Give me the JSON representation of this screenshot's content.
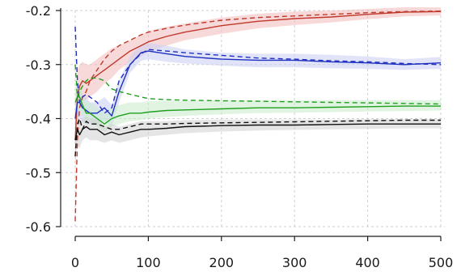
{
  "chart_data": {
    "type": "line",
    "title": "",
    "xlabel": "",
    "ylabel": "",
    "xlim": [
      0,
      500
    ],
    "ylim": [
      -0.6,
      -0.2
    ],
    "grid": true,
    "legend": "none",
    "x_ticks": [
      0,
      100,
      200,
      300,
      400,
      500
    ],
    "x_tick_labels": [
      "0",
      "100",
      "200",
      "300",
      "400",
      "500"
    ],
    "y_ticks": [
      -0.2,
      -0.3,
      -0.4,
      -0.5,
      -0.6
    ],
    "y_tick_labels": [
      "-0.2",
      "-0.3",
      "-0.4",
      "-0.5",
      "-0.6"
    ],
    "x": [
      0,
      3,
      6,
      10,
      15,
      20,
      30,
      40,
      50,
      60,
      75,
      90,
      100,
      125,
      150,
      200,
      250,
      300,
      350,
      400,
      450,
      500
    ],
    "series": [
      {
        "color": "#c0392b",
        "band_color": "#f2b9b9",
        "mean": [
          -0.44,
          -0.36,
          -0.34,
          -0.33,
          -0.335,
          -0.33,
          -0.32,
          -0.31,
          -0.3,
          -0.29,
          -0.275,
          -0.265,
          -0.258,
          -0.248,
          -0.24,
          -0.228,
          -0.22,
          -0.215,
          -0.212,
          -0.207,
          -0.203,
          -0.202
        ],
        "lower": [
          -0.5,
          -0.41,
          -0.38,
          -0.37,
          -0.365,
          -0.36,
          -0.35,
          -0.335,
          -0.325,
          -0.31,
          -0.295,
          -0.285,
          -0.277,
          -0.265,
          -0.255,
          -0.243,
          -0.233,
          -0.227,
          -0.222,
          -0.216,
          -0.211,
          -0.209
        ],
        "upper": [
          -0.38,
          -0.31,
          -0.3,
          -0.295,
          -0.3,
          -0.3,
          -0.29,
          -0.28,
          -0.27,
          -0.265,
          -0.255,
          -0.245,
          -0.238,
          -0.23,
          -0.224,
          -0.213,
          -0.206,
          -0.202,
          -0.2,
          -0.197,
          -0.194,
          -0.194
        ],
        "dashed": [
          -0.59,
          -0.44,
          -0.38,
          -0.36,
          -0.35,
          -0.33,
          -0.31,
          -0.29,
          -0.275,
          -0.265,
          -0.255,
          -0.245,
          -0.24,
          -0.233,
          -0.227,
          -0.218,
          -0.213,
          -0.21,
          -0.207,
          -0.204,
          -0.202,
          -0.201
        ]
      },
      {
        "color": "#1f2fbf",
        "band_color": "#c9cdf2",
        "mean": [
          -0.4,
          -0.37,
          -0.37,
          -0.38,
          -0.385,
          -0.39,
          -0.39,
          -0.38,
          -0.395,
          -0.35,
          -0.3,
          -0.278,
          -0.275,
          -0.28,
          -0.285,
          -0.29,
          -0.292,
          -0.292,
          -0.295,
          -0.297,
          -0.3,
          -0.297
        ],
        "lower": [
          -0.43,
          -0.4,
          -0.4,
          -0.405,
          -0.41,
          -0.41,
          -0.41,
          -0.405,
          -0.415,
          -0.37,
          -0.315,
          -0.293,
          -0.29,
          -0.295,
          -0.298,
          -0.302,
          -0.305,
          -0.305,
          -0.307,
          -0.308,
          -0.31,
          -0.308
        ],
        "upper": [
          -0.37,
          -0.34,
          -0.34,
          -0.355,
          -0.36,
          -0.37,
          -0.37,
          -0.36,
          -0.375,
          -0.33,
          -0.285,
          -0.263,
          -0.26,
          -0.265,
          -0.272,
          -0.278,
          -0.28,
          -0.28,
          -0.282,
          -0.285,
          -0.29,
          -0.286
        ],
        "dashed": [
          -0.23,
          -0.33,
          -0.37,
          -0.36,
          -0.355,
          -0.36,
          -0.37,
          -0.39,
          -0.38,
          -0.33,
          -0.3,
          -0.28,
          -0.272,
          -0.275,
          -0.278,
          -0.283,
          -0.288,
          -0.29,
          -0.293,
          -0.295,
          -0.298,
          -0.3
        ]
      },
      {
        "color": "#1fa01f",
        "band_color": "#c8ebc8",
        "mean": [
          -0.37,
          -0.36,
          -0.36,
          -0.375,
          -0.39,
          -0.39,
          -0.4,
          -0.41,
          -0.4,
          -0.395,
          -0.39,
          -0.39,
          -0.388,
          -0.385,
          -0.384,
          -0.382,
          -0.38,
          -0.38,
          -0.379,
          -0.378,
          -0.377,
          -0.377
        ],
        "lower": [
          -0.4,
          -0.385,
          -0.385,
          -0.395,
          -0.405,
          -0.405,
          -0.415,
          -0.425,
          -0.415,
          -0.41,
          -0.405,
          -0.403,
          -0.4,
          -0.397,
          -0.395,
          -0.392,
          -0.39,
          -0.389,
          -0.388,
          -0.387,
          -0.386,
          -0.385
        ],
        "upper": [
          -0.34,
          -0.335,
          -0.335,
          -0.355,
          -0.37,
          -0.37,
          -0.38,
          -0.39,
          -0.38,
          -0.375,
          -0.37,
          -0.37,
          -0.368,
          -0.367,
          -0.367,
          -0.366,
          -0.366,
          -0.366,
          -0.366,
          -0.366,
          -0.366,
          -0.366
        ],
        "dashed": [
          -0.3,
          -0.36,
          -0.35,
          -0.34,
          -0.33,
          -0.325,
          -0.325,
          -0.33,
          -0.345,
          -0.35,
          -0.355,
          -0.36,
          -0.363,
          -0.365,
          -0.366,
          -0.367,
          -0.368,
          -0.369,
          -0.37,
          -0.371,
          -0.372,
          -0.373
        ]
      },
      {
        "color": "#111111",
        "band_color": "#cfcfcf",
        "mean": [
          -0.44,
          -0.42,
          -0.43,
          -0.42,
          -0.415,
          -0.42,
          -0.42,
          -0.43,
          -0.425,
          -0.43,
          -0.425,
          -0.42,
          -0.42,
          -0.418,
          -0.415,
          -0.413,
          -0.412,
          -0.412,
          -0.411,
          -0.41,
          -0.41,
          -0.41
        ],
        "lower": [
          -0.47,
          -0.45,
          -0.455,
          -0.44,
          -0.435,
          -0.44,
          -0.44,
          -0.445,
          -0.44,
          -0.445,
          -0.44,
          -0.435,
          -0.433,
          -0.43,
          -0.427,
          -0.424,
          -0.422,
          -0.421,
          -0.42,
          -0.419,
          -0.418,
          -0.418
        ],
        "upper": [
          -0.41,
          -0.39,
          -0.405,
          -0.4,
          -0.395,
          -0.4,
          -0.4,
          -0.415,
          -0.41,
          -0.415,
          -0.41,
          -0.405,
          -0.405,
          -0.405,
          -0.403,
          -0.402,
          -0.402,
          -0.402,
          -0.402,
          -0.401,
          -0.401,
          -0.401
        ],
        "dashed": [
          -0.47,
          -0.41,
          -0.4,
          -0.42,
          -0.405,
          -0.41,
          -0.41,
          -0.415,
          -0.42,
          -0.42,
          -0.415,
          -0.41,
          -0.41,
          -0.41,
          -0.409,
          -0.408,
          -0.407,
          -0.406,
          -0.405,
          -0.404,
          -0.403,
          -0.403
        ]
      }
    ]
  }
}
